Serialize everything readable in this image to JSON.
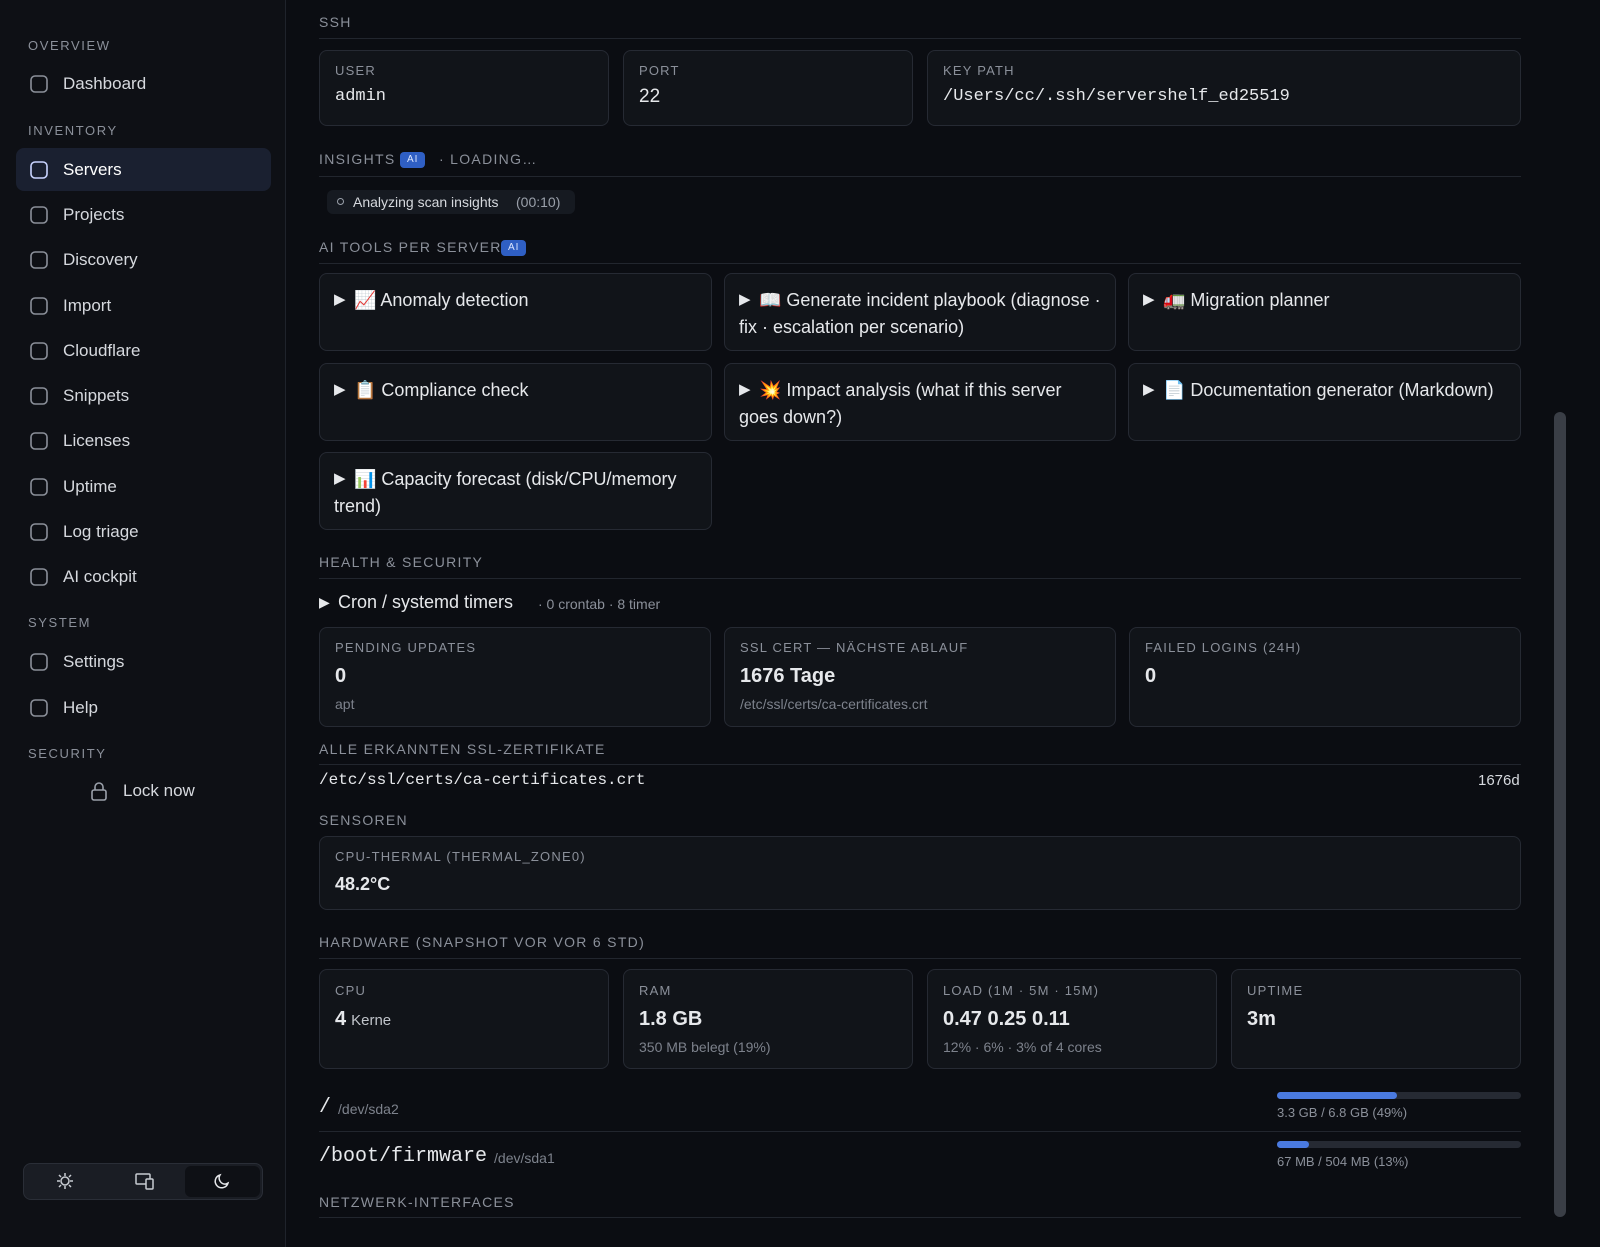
{
  "sidebar": {
    "sections": [
      {
        "title": "OVERVIEW",
        "items": [
          "Dashboard"
        ]
      },
      {
        "title": "INVENTORY",
        "items": [
          "Servers",
          "Projects",
          "Discovery",
          "Import",
          "Cloudflare",
          "Snippets",
          "Licenses",
          "Uptime",
          "Log triage",
          "AI cockpit"
        ]
      },
      {
        "title": "SYSTEM",
        "items": [
          "Settings",
          "Help"
        ]
      },
      {
        "title": "SECURITY",
        "items": [
          "Lock now"
        ]
      }
    ]
  },
  "ssh": {
    "title": "SSH",
    "fields": [
      {
        "label": "USER",
        "value": "admin"
      },
      {
        "label": "PORT",
        "value": "22"
      },
      {
        "label": "KEY PATH",
        "value": "/Users/cc/.ssh/servershelf_ed25519"
      }
    ]
  },
  "insights": {
    "title": "INSIGHTS",
    "badge": "AI",
    "status": "· LOADING…",
    "chip": "Analyzing scan insights",
    "timer": "(00:10)"
  },
  "ai_tools": {
    "title": "AI TOOLS PER SERVER",
    "badge": "AI",
    "tools": [
      "📈 Anomaly detection",
      "📖 Generate incident playbook (diagnose · fix · escalation per scenario)",
      "🚛 Migration planner",
      "📋 Compliance check",
      "💥 Impact analysis (what if this server goes down?)",
      "📄 Documentation generator (Markdown)",
      "📊 Capacity forecast (disk/CPU/memory trend)"
    ]
  },
  "health": {
    "title": "HEALTH & SECURITY",
    "cron": {
      "label": "Cron / systemd timers",
      "meta": "· 0 crontab · 8 timer"
    },
    "cards": [
      {
        "label": "PENDING UPDATES",
        "value": "0",
        "sub": "apt"
      },
      {
        "label": "SSL CERT — NÄCHSTE ABLAUF",
        "value": "1676 Tage",
        "sub": "/etc/ssl/certs/ca-certificates.crt"
      },
      {
        "label": "FAILED LOGINS (24H)",
        "value": "0"
      }
    ]
  },
  "ssl_certs": {
    "title": "ALLE ERKANNTEN SSL-ZERTIFIKATE",
    "rows": [
      {
        "path": "/etc/ssl/certs/ca-certificates.crt",
        "days": "1676d"
      }
    ]
  },
  "sensors": {
    "title": "SENSOREN",
    "items": [
      {
        "label": "CPU-THERMAL (THERMAL_ZONE0)",
        "value": "48.2°C"
      }
    ]
  },
  "hardware": {
    "title": "HARDWARE (SNAPSHOT VOR VOR 6 STD)",
    "cards": [
      {
        "label": "CPU",
        "value": "4",
        "unit": "Kerne"
      },
      {
        "label": "RAM",
        "value": "1.8 GB",
        "sub": "350 MB belegt (19%)"
      },
      {
        "label": "LOAD (1M · 5M · 15M)",
        "value": "0.47 0.25 0.11",
        "sub": "12% · 6% · 3% of 4 cores"
      },
      {
        "label": "UPTIME",
        "value": "3m"
      }
    ]
  },
  "disks": [
    {
      "mount": "/",
      "device": "/dev/sda2",
      "usage": "3.3 GB / 6.8 GB (49%)",
      "percent": 49
    },
    {
      "mount": "/boot/firmware",
      "device": "/dev/sda1",
      "usage": "67 MB / 504 MB (13%)",
      "percent": 13
    }
  ],
  "network": {
    "title": "NETZWERK-INTERFACES"
  }
}
